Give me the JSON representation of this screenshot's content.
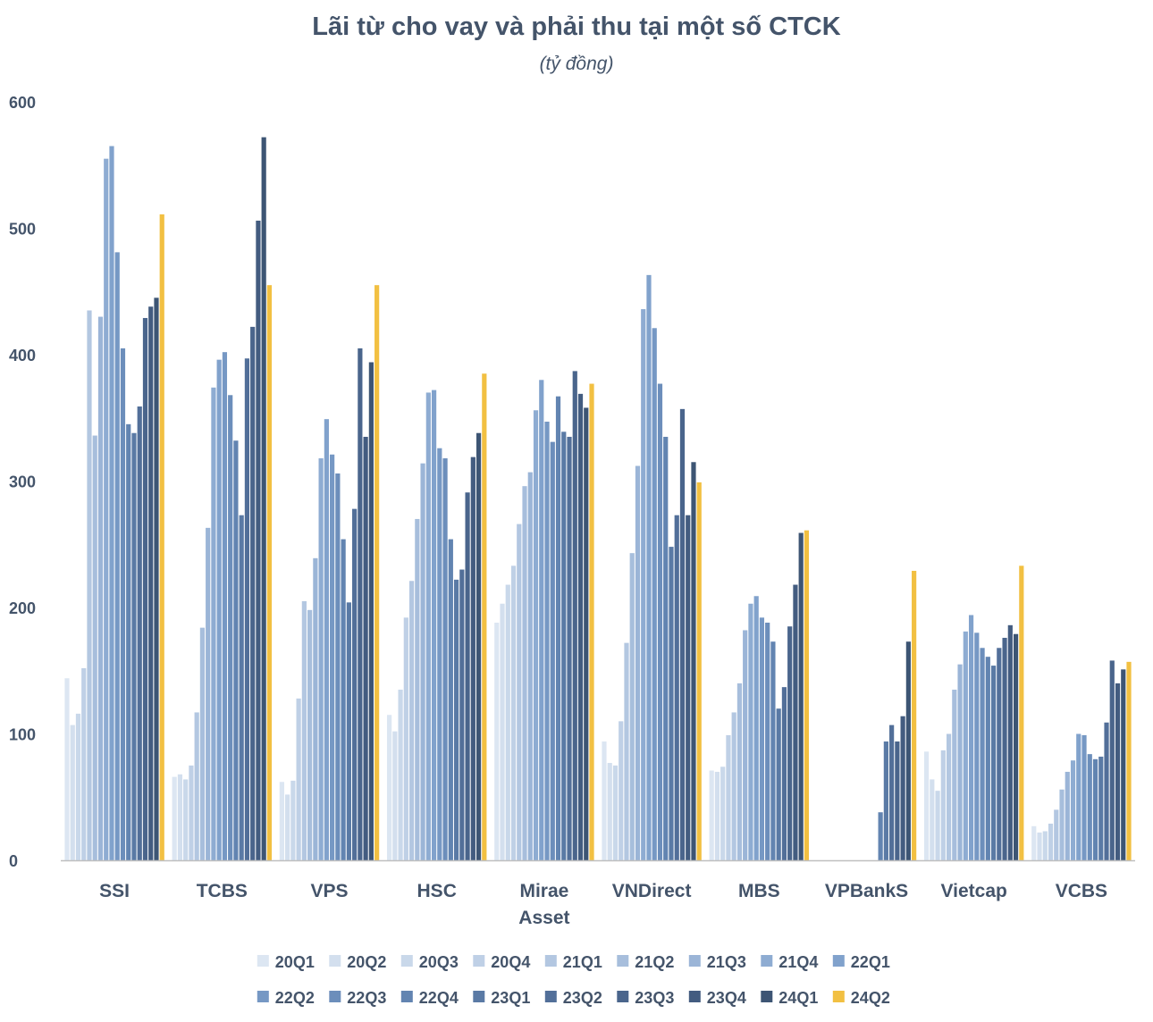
{
  "title": "Lãi từ cho vay và phải thu tại một số CTCK",
  "subtitle": "(tỷ đồng)",
  "chart_data": {
    "type": "bar",
    "title": "Lãi từ cho vay và phải thu tại một số CTCK",
    "subtitle": "(tỷ đồng)",
    "ylim": [
      0,
      600
    ],
    "yticks": [
      "0",
      "100",
      "200",
      "300",
      "400",
      "500",
      "600"
    ],
    "grid": false,
    "legend_position": "bottom",
    "categories": [
      {
        "label": [
          "SSI"
        ]
      },
      {
        "label": [
          "TCBS"
        ]
      },
      {
        "label": [
          "VPS"
        ]
      },
      {
        "label": [
          "HSC"
        ]
      },
      {
        "label": [
          "Mirae",
          "Asset"
        ]
      },
      {
        "label": [
          "VNDirect"
        ]
      },
      {
        "label": [
          "MBS"
        ]
      },
      {
        "label": [
          "VPBankS"
        ]
      },
      {
        "label": [
          "Vietcap"
        ]
      },
      {
        "label": [
          "VCBS"
        ]
      }
    ],
    "series": [
      {
        "name": "20Q1",
        "color": "#dce6f2",
        "values": [
          144,
          66,
          62,
          115,
          188,
          94,
          71,
          null,
          86,
          27
        ]
      },
      {
        "name": "20Q2",
        "color": "#d3dfee",
        "values": [
          107,
          68,
          52,
          102,
          203,
          77,
          70,
          null,
          64,
          22
        ]
      },
      {
        "name": "20Q3",
        "color": "#c9d8ea",
        "values": [
          116,
          64,
          63,
          135,
          218,
          75,
          74,
          null,
          55,
          23
        ]
      },
      {
        "name": "20Q4",
        "color": "#bfd0e6",
        "values": [
          152,
          75,
          128,
          192,
          233,
          110,
          99,
          null,
          87,
          29
        ]
      },
      {
        "name": "21Q1",
        "color": "#b3c7e1",
        "values": [
          435,
          117,
          205,
          221,
          266,
          172,
          117,
          null,
          100,
          40
        ]
      },
      {
        "name": "21Q2",
        "color": "#a7bedc",
        "values": [
          336,
          184,
          198,
          270,
          296,
          243,
          140,
          null,
          135,
          56
        ]
      },
      {
        "name": "21Q3",
        "color": "#9bb5d7",
        "values": [
          430,
          263,
          239,
          314,
          307,
          312,
          182,
          null,
          155,
          70
        ]
      },
      {
        "name": "21Q4",
        "color": "#8eacd2",
        "values": [
          555,
          374,
          318,
          370,
          356,
          436,
          203,
          null,
          181,
          79
        ]
      },
      {
        "name": "22Q1",
        "color": "#81a2cc",
        "values": [
          565,
          396,
          349,
          372,
          380,
          463,
          209,
          null,
          194,
          100
        ]
      },
      {
        "name": "22Q2",
        "color": "#7698c4",
        "values": [
          481,
          402,
          321,
          326,
          347,
          421,
          192,
          null,
          180,
          99
        ]
      },
      {
        "name": "22Q3",
        "color": "#6c8ebb",
        "values": [
          405,
          368,
          306,
          318,
          331,
          377,
          188,
          null,
          168,
          84
        ]
      },
      {
        "name": "22Q4",
        "color": "#6284b1",
        "values": [
          345,
          332,
          254,
          254,
          367,
          335,
          173,
          38,
          161,
          80
        ]
      },
      {
        "name": "23Q1",
        "color": "#5a7aa5",
        "values": [
          338,
          273,
          204,
          222,
          339,
          248,
          120,
          94,
          154,
          82
        ]
      },
      {
        "name": "23Q2",
        "color": "#526f99",
        "values": [
          359,
          397,
          278,
          230,
          335,
          273,
          137,
          107,
          168,
          109
        ]
      },
      {
        "name": "23Q3",
        "color": "#4a658c",
        "values": [
          429,
          422,
          405,
          291,
          387,
          357,
          185,
          94,
          176,
          158
        ]
      },
      {
        "name": "23Q4",
        "color": "#435c80",
        "values": [
          438,
          506,
          335,
          319,
          369,
          273,
          218,
          114,
          186,
          140
        ]
      },
      {
        "name": "24Q1",
        "color": "#3d5574",
        "values": [
          445,
          572,
          394,
          338,
          358,
          315,
          259,
          173,
          179,
          151
        ]
      },
      {
        "name": "24Q2",
        "color": "#f2c042",
        "values": [
          511,
          455,
          455,
          385,
          377,
          299,
          261,
          229,
          233,
          157
        ]
      }
    ],
    "extra_values_note_free": true
  }
}
